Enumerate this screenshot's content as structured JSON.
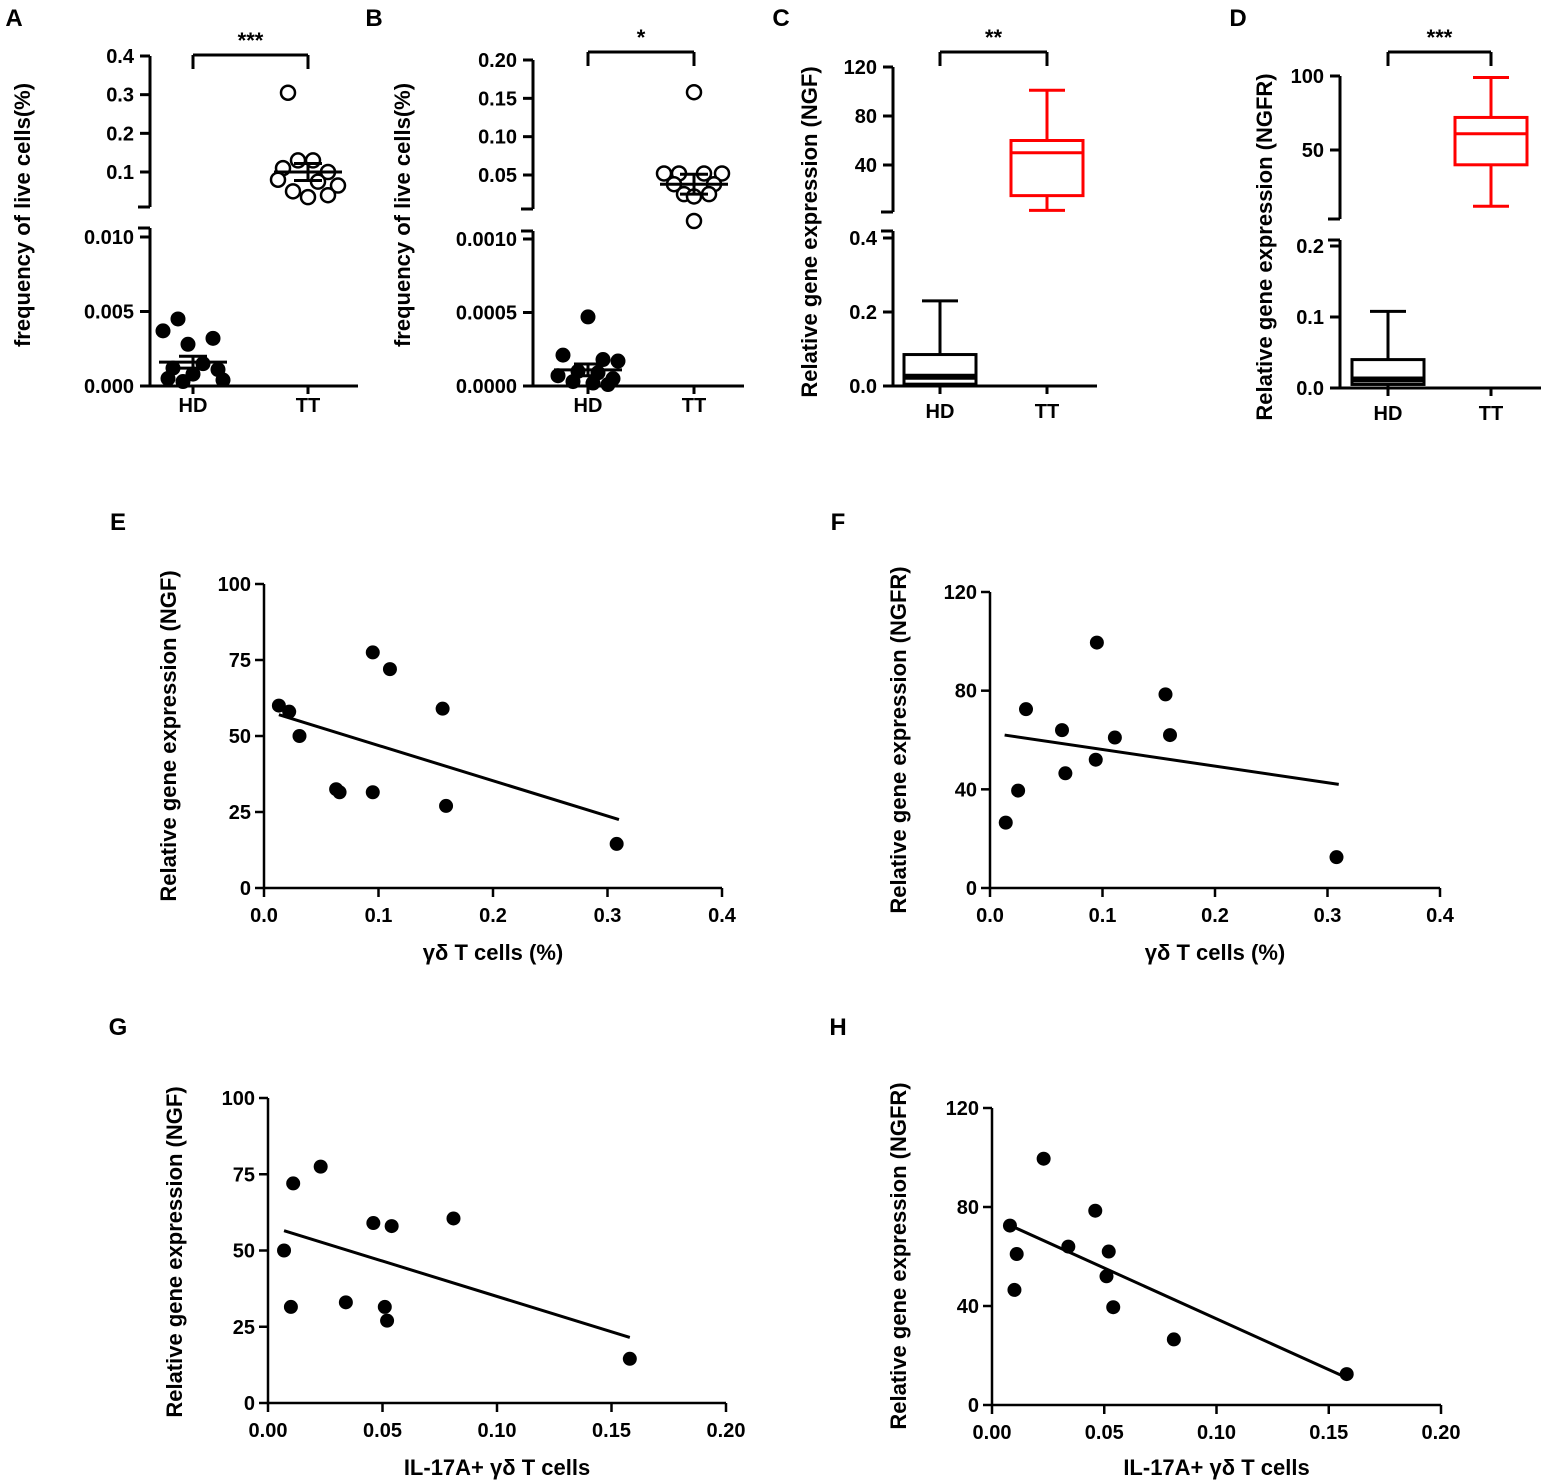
{
  "chart_data": [
    {
      "panel": "A",
      "type": "scatter",
      "ylabel": "frequency of live cells(%)",
      "categories": [
        "HD",
        "TT"
      ],
      "significance": "***",
      "y_upper": {
        "ticks": [
          "0.1",
          "0.2",
          "0.3",
          "0.4"
        ],
        "tick_values": [
          0.1,
          0.2,
          0.3,
          0.4
        ]
      },
      "y_lower": {
        "ticks": [
          "0.000",
          "0.005",
          "0.010"
        ],
        "tick_values": [
          0,
          0.005,
          0.01
        ]
      },
      "series": [
        {
          "name": "HD",
          "marker": "filled",
          "segment": "lower",
          "mean": 0.0016,
          "sem": 0.0004,
          "points": [
            [
              -0.15,
              0.0045
            ],
            [
              -0.3,
              0.0037
            ],
            [
              0.2,
              0.0032
            ],
            [
              -0.05,
              0.0028
            ],
            [
              0.1,
              0.0015
            ],
            [
              -0.2,
              0.0012
            ],
            [
              0.25,
              0.0011
            ],
            [
              0,
              0.0008
            ],
            [
              -0.25,
              0.0005
            ],
            [
              0.3,
              0.0004
            ],
            [
              -0.1,
              0.0003
            ]
          ]
        },
        {
          "name": "TT",
          "marker": "open",
          "segment": "upper",
          "mean": 0.1,
          "sem": 0.022,
          "points": [
            [
              -0.2,
              0.305
            ],
            [
              -0.1,
              0.13
            ],
            [
              0.05,
              0.13
            ],
            [
              -0.25,
              0.11
            ],
            [
              0.2,
              0.1
            ],
            [
              -0.3,
              0.08
            ],
            [
              0.1,
              0.075
            ],
            [
              0.3,
              0.065
            ],
            [
              -0.15,
              0.05
            ],
            [
              0.2,
              0.04
            ],
            [
              0,
              0.035
            ]
          ]
        }
      ]
    },
    {
      "panel": "B",
      "type": "scatter",
      "ylabel": "frequency of live cells(%)",
      "categories": [
        "HD",
        "TT"
      ],
      "significance": "*",
      "y_upper": {
        "ticks": [
          "0.05",
          "0.10",
          "0.15",
          "0.20"
        ],
        "tick_values": [
          0.05,
          0.1,
          0.15,
          0.2
        ]
      },
      "y_lower": {
        "ticks": [
          "0.0000",
          "0.0005",
          "0.0010"
        ],
        "tick_values": [
          0,
          0.0005,
          0.001
        ]
      },
      "series": [
        {
          "name": "HD",
          "marker": "filled",
          "segment": "lower",
          "mean": 0.00011,
          "sem": 4e-05,
          "points": [
            [
              0,
              0.00047
            ],
            [
              -0.25,
              0.00021
            ],
            [
              0.15,
              0.00018
            ],
            [
              0.3,
              0.00017
            ],
            [
              -0.1,
              0.0001
            ],
            [
              0.1,
              9e-05
            ],
            [
              -0.3,
              7e-05
            ],
            [
              0.25,
              5e-05
            ],
            [
              -0.15,
              3e-05
            ],
            [
              0.05,
              2e-05
            ],
            [
              0.2,
              1e-05
            ]
          ]
        },
        {
          "name": "TT",
          "marker": "open",
          "segment": "upper",
          "mean": 0.038,
          "sem": 0.013,
          "points": [
            [
              0,
              0.158
            ],
            [
              -0.3,
              0.052
            ],
            [
              -0.15,
              0.052
            ],
            [
              0.1,
              0.052
            ],
            [
              0.28,
              0.052
            ],
            [
              -0.2,
              0.038
            ],
            [
              0.2,
              0.038
            ],
            [
              -0.1,
              0.025
            ],
            [
              0.15,
              0.025
            ],
            [
              0,
              0.022
            ],
            [
              0,
              -0.01
            ]
          ]
        }
      ]
    },
    {
      "panel": "C",
      "type": "box",
      "ylabel": "Relative gene expression (NGF)",
      "categories": [
        "HD",
        "TT"
      ],
      "significance": "**",
      "y_upper": {
        "ticks": [
          "40",
          "80",
          "120"
        ],
        "tick_values": [
          40,
          80,
          120
        ]
      },
      "y_lower": {
        "ticks": [
          "0.0",
          "0.2",
          "0.4"
        ],
        "tick_values": [
          0,
          0.2,
          0.4
        ]
      },
      "boxes": [
        {
          "name": "HD",
          "color": "#000000",
          "segment": "lower",
          "min": 0,
          "q1": 0.005,
          "median": 0.025,
          "q3": 0.085,
          "max": 0.23
        },
        {
          "name": "TT",
          "color": "#ff0000",
          "segment": "upper",
          "min": 3,
          "q1": 15,
          "median": 50,
          "q3": 60,
          "max": 101
        }
      ]
    },
    {
      "panel": "D",
      "type": "box",
      "ylabel": "Relative gene expression (NGFR)",
      "categories": [
        "HD",
        "TT"
      ],
      "significance": "***",
      "y_upper": {
        "ticks": [
          "50",
          "100"
        ],
        "tick_values": [
          50,
          100
        ]
      },
      "y_lower": {
        "ticks": [
          "0.0",
          "0.1",
          "0.2"
        ],
        "tick_values": [
          0,
          0.1,
          0.2
        ]
      },
      "boxes": [
        {
          "name": "HD",
          "color": "#000000",
          "segment": "lower",
          "min": 0,
          "q1": 0.005,
          "median": 0.012,
          "q3": 0.04,
          "max": 0.108
        },
        {
          "name": "TT",
          "color": "#ff0000",
          "segment": "upper",
          "min": 12,
          "q1": 40,
          "median": 61,
          "q3": 72,
          "max": 99
        }
      ]
    },
    {
      "panel": "E",
      "type": "scatter",
      "xlabel": "γδ T cells (%)",
      "ylabel": "Relative gene expression (NGF)",
      "xlim": [
        0,
        0.4
      ],
      "ylim": [
        0,
        100
      ],
      "xticks": [
        "0.0",
        "0.1",
        "0.2",
        "0.3",
        "0.4"
      ],
      "xtick_values": [
        0,
        0.1,
        0.2,
        0.3,
        0.4
      ],
      "yticks": [
        "0",
        "25",
        "50",
        "75",
        "100"
      ],
      "ytick_values": [
        0,
        25,
        50,
        75,
        100
      ],
      "points": [
        [
          0.013,
          60
        ],
        [
          0.022,
          58
        ],
        [
          0.031,
          50
        ],
        [
          0.063,
          32.5
        ],
        [
          0.066,
          31.5
        ],
        [
          0.095,
          31.5
        ],
        [
          0.095,
          77.5
        ],
        [
          0.11,
          72
        ],
        [
          0.156,
          59
        ],
        [
          0.159,
          27
        ],
        [
          0.308,
          14.5
        ]
      ],
      "fit": {
        "x": [
          0.013,
          0.31
        ],
        "y": [
          57,
          22.5
        ]
      }
    },
    {
      "panel": "F",
      "type": "scatter",
      "xlabel": "γδ T cells (%)",
      "ylabel": "Relative gene expression (NGFR)",
      "xlim": [
        0,
        0.4
      ],
      "ylim": [
        0,
        120
      ],
      "xticks": [
        "0.0",
        "0.1",
        "0.2",
        "0.3",
        "0.4"
      ],
      "xtick_values": [
        0,
        0.1,
        0.2,
        0.3,
        0.4
      ],
      "yticks": [
        "0",
        "40",
        "80",
        "120"
      ],
      "ytick_values": [
        0,
        40,
        80,
        120
      ],
      "points": [
        [
          0.014,
          26.5
        ],
        [
          0.025,
          39.5
        ],
        [
          0.032,
          72.5
        ],
        [
          0.064,
          64
        ],
        [
          0.067,
          46.5
        ],
        [
          0.094,
          52
        ],
        [
          0.095,
          99.5
        ],
        [
          0.111,
          61
        ],
        [
          0.156,
          78.5
        ],
        [
          0.16,
          62
        ],
        [
          0.308,
          12.5
        ]
      ],
      "fit": {
        "x": [
          0.013,
          0.31
        ],
        "y": [
          62,
          42
        ]
      }
    },
    {
      "panel": "G",
      "type": "scatter",
      "xlabel": "IL-17A+ γδ T cells",
      "ylabel": "Relative gene expression (NGF)",
      "xlim": [
        0,
        0.2
      ],
      "ylim": [
        0,
        100
      ],
      "xticks": [
        "0.00",
        "0.05",
        "0.10",
        "0.15",
        "0.20"
      ],
      "xtick_values": [
        0,
        0.05,
        0.1,
        0.15,
        0.2
      ],
      "yticks": [
        "0",
        "25",
        "50",
        "75",
        "100"
      ],
      "ytick_values": [
        0,
        25,
        50,
        75,
        100
      ],
      "points": [
        [
          0.007,
          50
        ],
        [
          0.01,
          31.5
        ],
        [
          0.011,
          72
        ],
        [
          0.023,
          77.5
        ],
        [
          0.034,
          33
        ],
        [
          0.046,
          59
        ],
        [
          0.051,
          31.5
        ],
        [
          0.052,
          27
        ],
        [
          0.054,
          58
        ],
        [
          0.081,
          60.5
        ],
        [
          0.158,
          14.5
        ]
      ],
      "fit": {
        "x": [
          0.007,
          0.158
        ],
        "y": [
          56.5,
          21.5
        ]
      }
    },
    {
      "panel": "H",
      "type": "scatter",
      "xlabel": "IL-17A+ γδ T cells",
      "ylabel": "Relative gene expression (NGFR)",
      "xlim": [
        0,
        0.2
      ],
      "ylim": [
        0,
        120
      ],
      "xticks": [
        "0.00",
        "0.05",
        "0.10",
        "0.15",
        "0.20"
      ],
      "xtick_values": [
        0,
        0.05,
        0.1,
        0.15,
        0.2
      ],
      "yticks": [
        "0",
        "40",
        "80",
        "120"
      ],
      "ytick_values": [
        0,
        40,
        80,
        120
      ],
      "points": [
        [
          0.008,
          72.5
        ],
        [
          0.01,
          46.5
        ],
        [
          0.011,
          61
        ],
        [
          0.023,
          99.5
        ],
        [
          0.034,
          64
        ],
        [
          0.046,
          78.5
        ],
        [
          0.051,
          52
        ],
        [
          0.052,
          62
        ],
        [
          0.054,
          39.5
        ],
        [
          0.081,
          26.5
        ],
        [
          0.158,
          12.5
        ]
      ],
      "fit": {
        "x": [
          0.007,
          0.158
        ],
        "y": [
          73,
          11
        ]
      }
    }
  ]
}
